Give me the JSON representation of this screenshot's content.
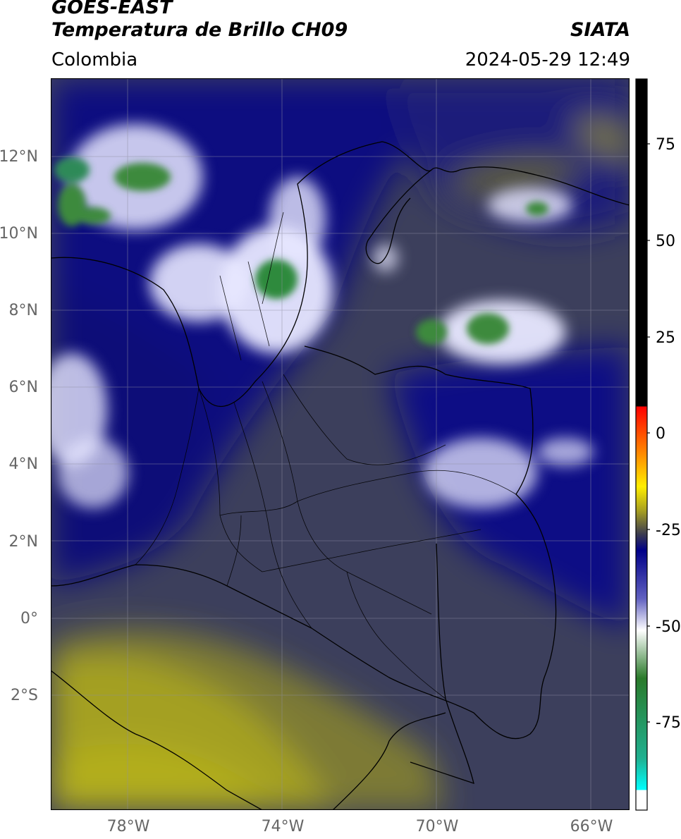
{
  "header": {
    "satellite": "GOES-EAST",
    "product": "Temperatura de Brillo CH09",
    "region": "Colombia",
    "org": "SIATA",
    "datetime": "2024-05-29 12:49"
  },
  "map": {
    "lat_labels": [
      "12°N",
      "10°N",
      "8°N",
      "6°N",
      "4°N",
      "2°N",
      "0°",
      "2°S"
    ],
    "lon_labels": [
      "78°W",
      "74°W",
      "70°W",
      "66°W"
    ],
    "extent": {
      "lon_min": -80,
      "lon_max": -65,
      "lat_min": -5.2,
      "lat_max": 13.8
    }
  },
  "colorbar": {
    "ticks": [
      "75",
      "50",
      "25",
      "0",
      "-25",
      "-50",
      "-75"
    ],
    "stops": [
      {
        "value": 90,
        "color": "#000000"
      },
      {
        "value": 8,
        "color": "#000000"
      },
      {
        "value": 8,
        "color": "#ff0000"
      },
      {
        "value": -5,
        "color": "#ff9900"
      },
      {
        "value": -12,
        "color": "#ffee00"
      },
      {
        "value": -18,
        "color": "#a8a020"
      },
      {
        "value": -24,
        "color": "#3a3a50"
      },
      {
        "value": -28,
        "color": "#000088"
      },
      {
        "value": -40,
        "color": "#6060c0"
      },
      {
        "value": -48,
        "color": "#ffffff"
      },
      {
        "value": -60,
        "color": "#2a7a2a"
      },
      {
        "value": -80,
        "color": "#20b090"
      },
      {
        "value": -88,
        "color": "#00ffff"
      },
      {
        "value": -88,
        "color": "#ffffff"
      },
      {
        "value": -93,
        "color": "#ffffff"
      }
    ]
  }
}
